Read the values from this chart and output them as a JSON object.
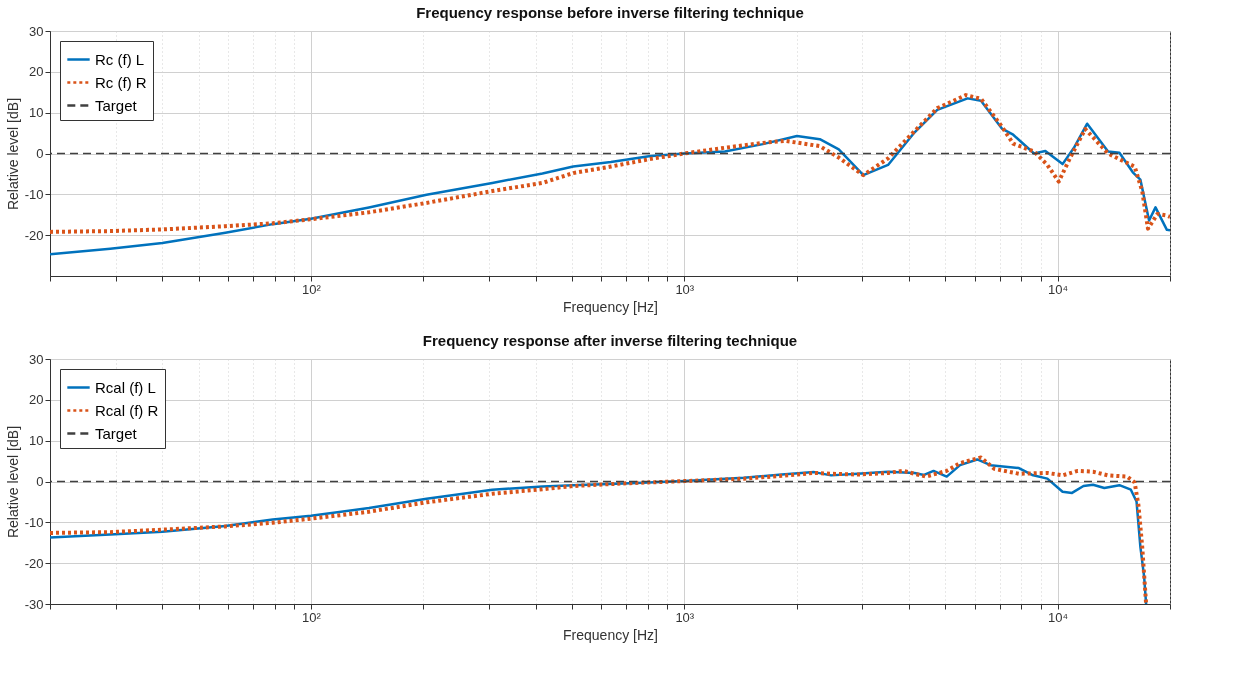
{
  "chart_data": [
    {
      "type": "line",
      "title": "Frequency response before inverse filtering technique",
      "xlabel": "Frequency [Hz]",
      "ylabel": "Relative level [dB]",
      "log": "x",
      "grid": true,
      "legend": "top left",
      "xlim": [
        20,
        20000
      ],
      "ylim": [
        -30,
        30
      ],
      "yticks": [
        -20,
        -10,
        0,
        10,
        20,
        30
      ],
      "xticks": [
        {
          "value": 20,
          "label": null
        },
        {
          "value": 30,
          "label": null
        },
        {
          "value": 40,
          "label": null
        },
        {
          "value": 50,
          "label": null
        },
        {
          "value": 60,
          "label": null
        },
        {
          "value": 70,
          "label": null
        },
        {
          "value": 80,
          "label": null
        },
        {
          "value": 90,
          "label": null
        },
        {
          "value": 100,
          "label": "10²"
        },
        {
          "value": 200,
          "label": null
        },
        {
          "value": 300,
          "label": null
        },
        {
          "value": 400,
          "label": null
        },
        {
          "value": 500,
          "label": null
        },
        {
          "value": 600,
          "label": null
        },
        {
          "value": 700,
          "label": null
        },
        {
          "value": 800,
          "label": null
        },
        {
          "value": 900,
          "label": null
        },
        {
          "value": 1000,
          "label": "10³"
        },
        {
          "value": 2000,
          "label": null
        },
        {
          "value": 3000,
          "label": null
        },
        {
          "value": 4000,
          "label": null
        },
        {
          "value": 5000,
          "label": null
        },
        {
          "value": 6000,
          "label": null
        },
        {
          "value": 7000,
          "label": null
        },
        {
          "value": 8000,
          "label": null
        },
        {
          "value": 9000,
          "label": null
        },
        {
          "value": 10000,
          "label": "10⁴"
        },
        {
          "value": 20000,
          "label": null
        }
      ],
      "ref_lines": [
        {
          "axis": "y",
          "value": 0,
          "label": "Target",
          "color": "#404040",
          "line_style": "dashed"
        }
      ],
      "series": [
        {
          "name": "Rc (f) L",
          "color": "#0072bd",
          "line_style": "solid",
          "x": [
            20,
            29,
            40,
            59,
            79,
            100,
            143,
            204,
            306,
            417,
            504,
            636,
            804,
            1000,
            1284,
            1623,
            2004,
            2307,
            2593,
            3017,
            3514,
            4140,
            4761,
            5738,
            6233,
            7090,
            7603,
            8646,
            9272,
            10310,
            11060,
            12000,
            13650,
            14640,
            15900,
            16660,
            17580,
            18290,
            19620,
            20000
          ],
          "values": [
            -24.7,
            -23.3,
            -21.9,
            -19.4,
            -17.3,
            -16,
            -13.2,
            -10.1,
            -7.2,
            -4.9,
            -3.2,
            -2.1,
            -0.7,
            0,
            0.5,
            2.3,
            4.3,
            3.5,
            1,
            -5.3,
            -2.8,
            5.2,
            10.7,
            13.5,
            12.9,
            6.1,
            4.6,
            0,
            0.6,
            -2.6,
            1.4,
            7.3,
            0.5,
            0.2,
            -4.6,
            -6.4,
            -16.4,
            -13.2,
            -18.7,
            -18.8
          ]
        },
        {
          "name": "Rc (f) R",
          "color": "#d95319",
          "line_style": "dotted",
          "x": [
            20,
            29,
            40,
            59,
            79,
            100,
            143,
            204,
            306,
            417,
            504,
            636,
            804,
            1000,
            1284,
            1623,
            1867,
            2307,
            2593,
            3017,
            3514,
            4140,
            4761,
            5675,
            6233,
            7090,
            7603,
            8646,
            9388,
            10070,
            10810,
            11860,
            13650,
            14640,
            16080,
            16850,
            17460,
            18510,
            19620,
            20000
          ],
          "values": [
            -19.2,
            -19,
            -18.6,
            -17.8,
            -17.1,
            -16.1,
            -14.4,
            -12.1,
            -9.2,
            -7.2,
            -4.8,
            -3.2,
            -1.4,
            0,
            1.4,
            2.6,
            3.1,
            1.8,
            -1,
            -5.3,
            -1.2,
            5.5,
            11.1,
            14.3,
            13.4,
            6.6,
            2.4,
            0.5,
            -2.8,
            -6.9,
            -1,
            6,
            0,
            -1.4,
            -3.2,
            -9.2,
            -18.4,
            -14.8,
            -15.2,
            -15.5
          ]
        }
      ]
    },
    {
      "type": "line",
      "title": "Frequency response after inverse filtering technique",
      "xlabel": "Frequency [Hz]",
      "ylabel": "Relative level [dB]",
      "log": "x",
      "grid": true,
      "legend": "top left",
      "xlim": [
        20,
        20000
      ],
      "ylim": [
        -30,
        30
      ],
      "yticks": [
        -30,
        -20,
        -10,
        0,
        10,
        20,
        30
      ],
      "xticks": [
        {
          "value": 20,
          "label": null
        },
        {
          "value": 30,
          "label": null
        },
        {
          "value": 40,
          "label": null
        },
        {
          "value": 50,
          "label": null
        },
        {
          "value": 60,
          "label": null
        },
        {
          "value": 70,
          "label": null
        },
        {
          "value": 80,
          "label": null
        },
        {
          "value": 90,
          "label": null
        },
        {
          "value": 100,
          "label": "10²"
        },
        {
          "value": 200,
          "label": null
        },
        {
          "value": 300,
          "label": null
        },
        {
          "value": 400,
          "label": null
        },
        {
          "value": 500,
          "label": null
        },
        {
          "value": 600,
          "label": null
        },
        {
          "value": 700,
          "label": null
        },
        {
          "value": 800,
          "label": null
        },
        {
          "value": 900,
          "label": null
        },
        {
          "value": 1000,
          "label": "10³"
        },
        {
          "value": 2000,
          "label": null
        },
        {
          "value": 3000,
          "label": null
        },
        {
          "value": 4000,
          "label": null
        },
        {
          "value": 5000,
          "label": null
        },
        {
          "value": 6000,
          "label": null
        },
        {
          "value": 7000,
          "label": null
        },
        {
          "value": 8000,
          "label": null
        },
        {
          "value": 9000,
          "label": null
        },
        {
          "value": 10000,
          "label": "10⁴"
        },
        {
          "value": 20000,
          "label": null
        }
      ],
      "ref_lines": [
        {
          "axis": "y",
          "value": 0,
          "label": "Target",
          "color": "#404040",
          "line_style": "dashed"
        }
      ],
      "series": [
        {
          "name": "Rcal (f) L",
          "color": "#0072bd",
          "line_style": "solid",
          "x": [
            20,
            29,
            40,
            59,
            79,
            100,
            143,
            204,
            306,
            417,
            504,
            716,
            1000,
            1444,
            1825,
            2228,
            2473,
            2913,
            3514,
            4140,
            4387,
            4652,
            5046,
            5478,
            6090,
            6611,
            7875,
            8546,
            9388,
            10310,
            10930,
            11730,
            12440,
            13340,
            14640,
            15710,
            16270,
            16660,
            17050,
            17260
          ],
          "values": [
            -13.7,
            -13,
            -12.3,
            -10.9,
            -9.3,
            -8.4,
            -6.5,
            -4.2,
            -2,
            -1.2,
            -0.9,
            -0.4,
            0.1,
            0.9,
            1.7,
            2.3,
            1.5,
            1.9,
            2.4,
            2.1,
            1.6,
            2.6,
            1.2,
            4,
            5.4,
            4,
            3.3,
            1.6,
            0.7,
            -2.5,
            -2.8,
            -1.1,
            -0.8,
            -1.6,
            -0.9,
            -2,
            -4.9,
            -16,
            -23.3,
            -30
          ]
        },
        {
          "name": "Rcal (f) R",
          "color": "#d95319",
          "line_style": "dotted",
          "x": [
            20,
            29,
            40,
            59,
            79,
            100,
            143,
            204,
            306,
            417,
            504,
            716,
            1000,
            1444,
            1825,
            2228,
            2473,
            2913,
            3514,
            3856,
            4436,
            5046,
            5478,
            6233,
            6763,
            7875,
            9388,
            10310,
            11320,
            12440,
            13650,
            15350,
            16080,
            16460,
            16850,
            17260
          ],
          "values": [
            -12.6,
            -12.4,
            -11.8,
            -11,
            -10.1,
            -9.1,
            -7.4,
            -5.1,
            -3,
            -1.9,
            -1.1,
            -0.4,
            0.1,
            0.7,
            1.4,
            2.1,
            1.9,
            1.7,
            2.1,
            2.6,
            1.2,
            2.6,
            4.5,
            5.9,
            3.1,
            1.9,
            2.1,
            1.5,
            2.6,
            2.4,
            1.5,
            1.2,
            -0.2,
            -5.8,
            -16,
            -30
          ]
        }
      ]
    }
  ]
}
